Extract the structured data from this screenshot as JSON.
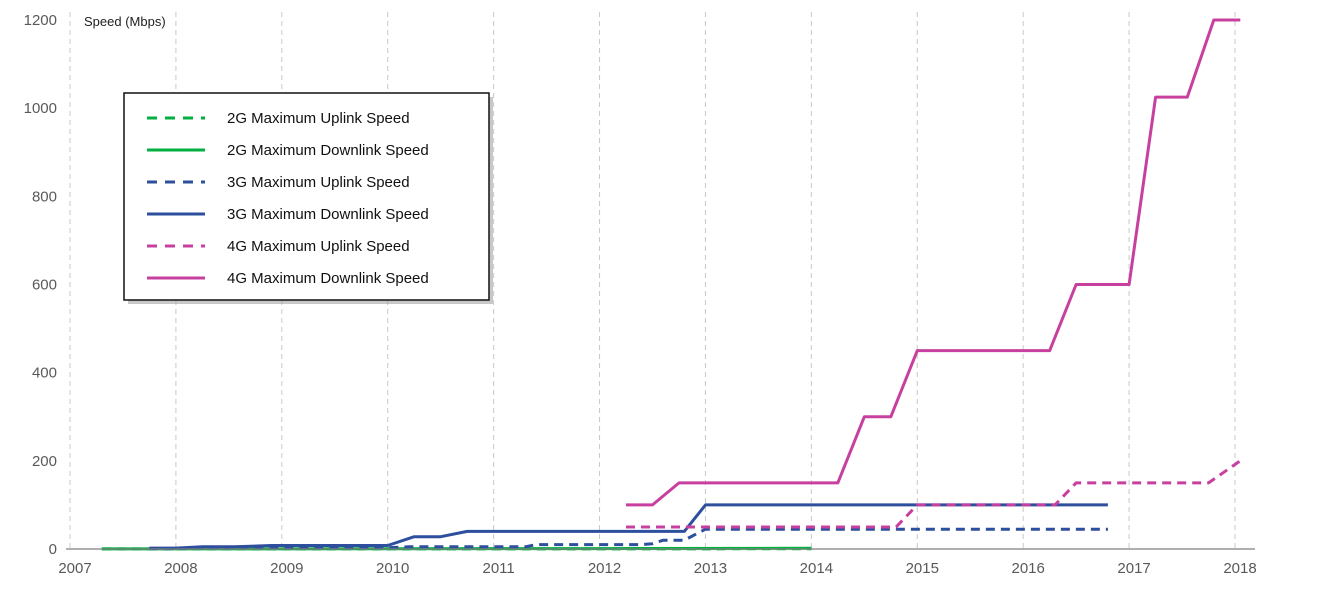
{
  "chart_data": {
    "type": "line",
    "title": "",
    "ylabel": "Speed (Mbps)",
    "xlabel": "",
    "xlim": [
      2007,
      2018.2
    ],
    "ylim": [
      0,
      1200
    ],
    "x_ticks": [
      "2007",
      "2008",
      "2009",
      "2010",
      "2011",
      "2012",
      "2013",
      "2014",
      "2015",
      "2016",
      "2017",
      "2018"
    ],
    "y_ticks": [
      "0",
      "200",
      "400",
      "600",
      "800",
      "1000",
      "1200"
    ],
    "grid": "vertical-dashed",
    "legend_position": "top-left",
    "series": [
      {
        "name": "2G Maximum Uplink Speed",
        "color": "#00b140",
        "style": "dashed",
        "points": [
          [
            2007.3,
            0.2
          ],
          [
            2014.0,
            0.5
          ]
        ]
      },
      {
        "name": "2G Maximum Downlink Speed",
        "color": "#00b140",
        "style": "solid",
        "points": [
          [
            2007.3,
            0.3
          ],
          [
            2010.0,
            0.5
          ],
          [
            2012.0,
            1
          ],
          [
            2014.0,
            1.5
          ]
        ]
      },
      {
        "name": "3G Maximum Uplink Speed",
        "color": "#2d4f9e",
        "style": "dashed",
        "points": [
          [
            2007.75,
            1
          ],
          [
            2008.0,
            1
          ],
          [
            2008.2,
            2
          ],
          [
            2008.5,
            2
          ],
          [
            2008.9,
            3
          ],
          [
            2010.0,
            3
          ],
          [
            2010.2,
            5
          ],
          [
            2011.3,
            5
          ],
          [
            2011.4,
            10
          ],
          [
            2012.4,
            10
          ],
          [
            2012.5,
            12
          ],
          [
            2012.6,
            20
          ],
          [
            2012.8,
            20
          ],
          [
            2013.0,
            45
          ],
          [
            2016.8,
            45
          ]
        ]
      },
      {
        "name": "3G Maximum Downlink Speed",
        "color": "#2d4f9e",
        "style": "solid",
        "points": [
          [
            2007.75,
            2
          ],
          [
            2008.0,
            2
          ],
          [
            2008.25,
            5
          ],
          [
            2008.55,
            5
          ],
          [
            2008.9,
            8
          ],
          [
            2010.0,
            8
          ],
          [
            2010.25,
            28
          ],
          [
            2010.5,
            28
          ],
          [
            2010.75,
            40
          ],
          [
            2012.8,
            40
          ],
          [
            2013.0,
            100
          ],
          [
            2016.8,
            100
          ]
        ]
      },
      {
        "name": "4G Maximum Uplink Speed",
        "color": "#c8409f",
        "style": "dashed",
        "points": [
          [
            2012.25,
            50
          ],
          [
            2012.75,
            50
          ],
          [
            2013.0,
            50
          ],
          [
            2014.8,
            50
          ],
          [
            2015.0,
            100
          ],
          [
            2016.3,
            100
          ],
          [
            2016.5,
            150
          ],
          [
            2017.75,
            150
          ],
          [
            2018.05,
            200
          ]
        ]
      },
      {
        "name": "4G Maximum Downlink Speed",
        "color": "#c8409f",
        "style": "solid",
        "points": [
          [
            2012.25,
            100
          ],
          [
            2012.5,
            100
          ],
          [
            2012.75,
            150
          ],
          [
            2014.25,
            150
          ],
          [
            2014.5,
            300
          ],
          [
            2014.75,
            300
          ],
          [
            2015.0,
            450
          ],
          [
            2016.25,
            450
          ],
          [
            2016.5,
            600
          ],
          [
            2017.0,
            600
          ],
          [
            2017.25,
            1025
          ],
          [
            2017.55,
            1025
          ],
          [
            2017.8,
            1200
          ],
          [
            2018.05,
            1200
          ]
        ]
      }
    ]
  }
}
